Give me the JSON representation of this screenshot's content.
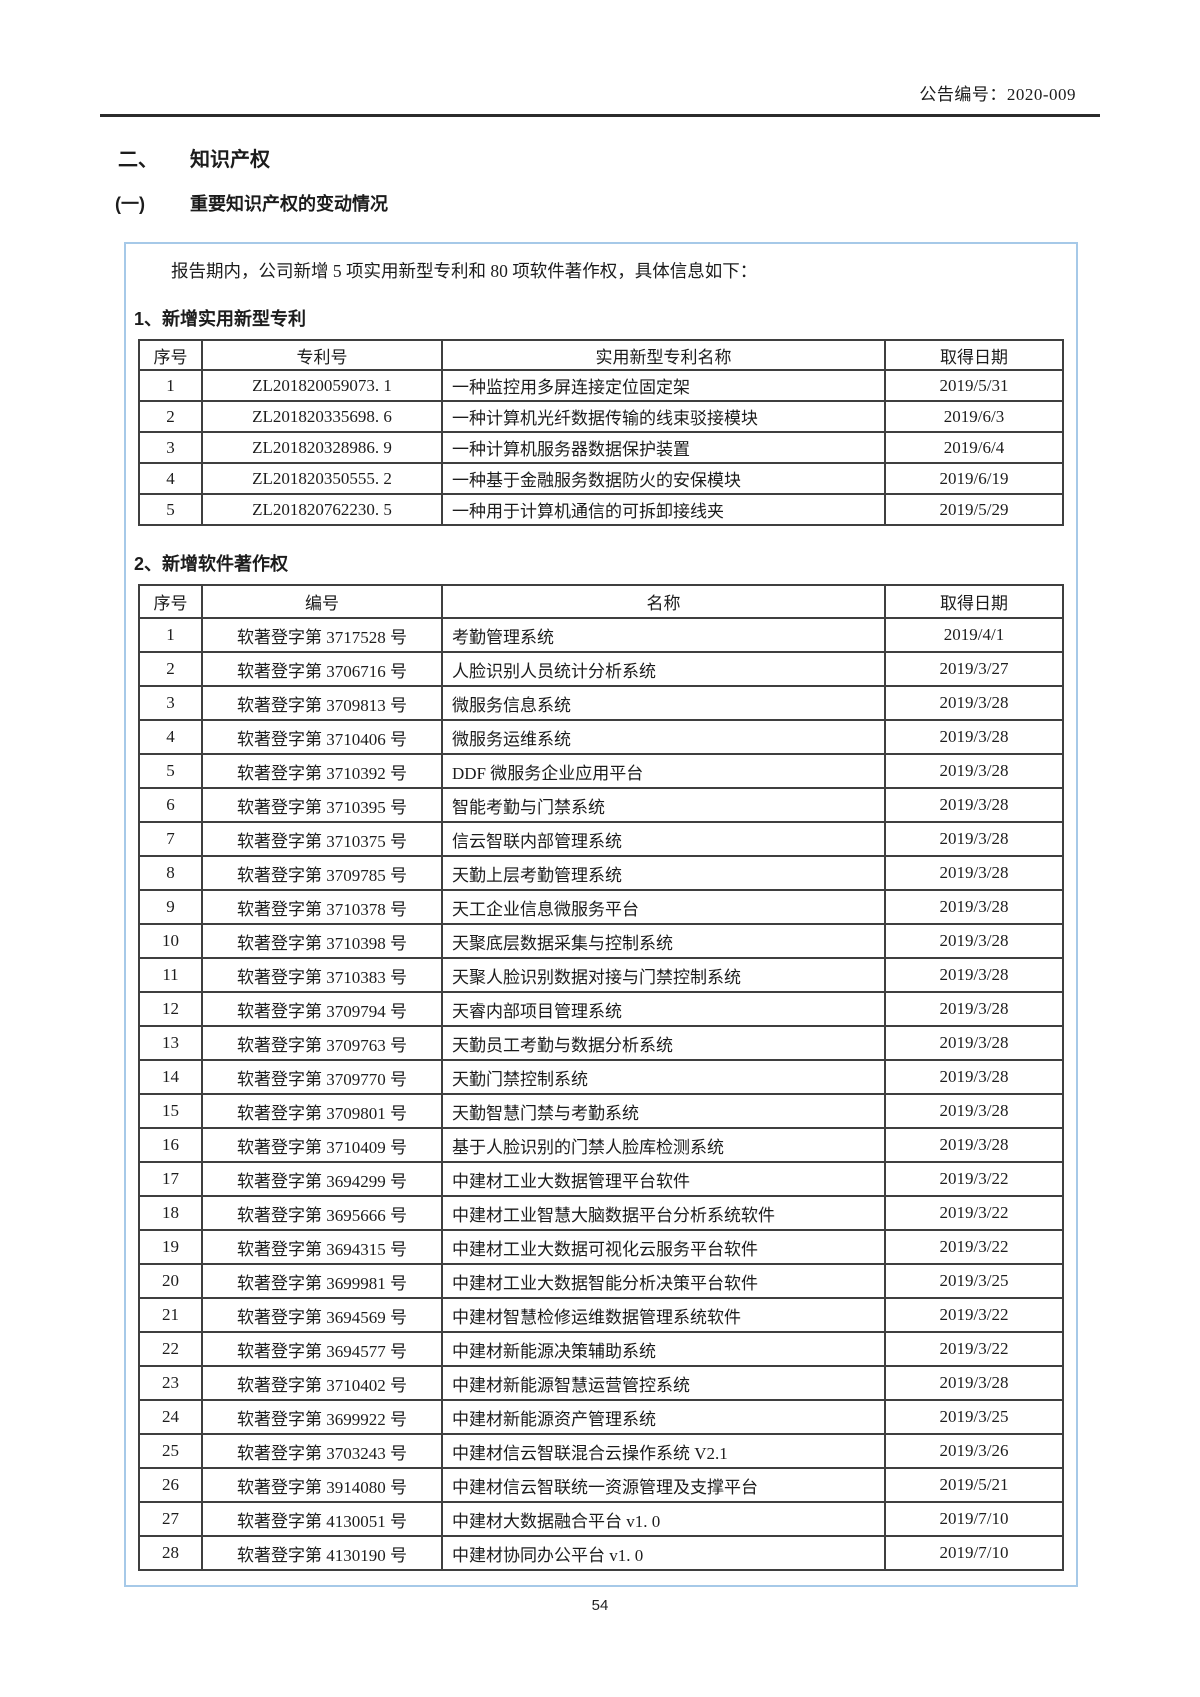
{
  "page": {
    "doc_number": "公告编号：2020-009",
    "page_number": "54"
  },
  "headings": {
    "section_number": "二、",
    "section_title": "知识产权",
    "subsection_number": "(一)",
    "subsection_title": "重要知识产权的变动情况",
    "intro": "报告期内，公司新增 5 项实用新型专利和 80 项软件著作权，具体信息如下：",
    "table1_heading": "1、新增实用新型专利",
    "table2_heading": "2、新增软件著作权"
  },
  "patent_table": {
    "headers": [
      "序号",
      "专利号",
      "实用新型专利名称",
      "取得日期"
    ],
    "rows": [
      [
        "1",
        "ZL201820059073. 1",
        "一种监控用多屏连接定位固定架",
        "2019/5/31"
      ],
      [
        "2",
        "ZL201820335698. 6",
        "一种计算机光纤数据传输的线束驳接模块",
        "2019/6/3"
      ],
      [
        "3",
        "ZL201820328986. 9",
        "一种计算机服务器数据保护装置",
        "2019/6/4"
      ],
      [
        "4",
        "ZL201820350555. 2",
        "一种基于金融服务数据防火的安保模块",
        "2019/6/19"
      ],
      [
        "5",
        "ZL201820762230. 5",
        "一种用于计算机通信的可拆卸接线夹",
        "2019/5/29"
      ]
    ]
  },
  "copyright_table": {
    "headers": [
      "序号",
      "编号",
      "名称",
      "取得日期"
    ],
    "rows": [
      [
        "1",
        "软著登字第 3717528 号",
        "考勤管理系统",
        "2019/4/1"
      ],
      [
        "2",
        "软著登字第 3706716 号",
        "人脸识别人员统计分析系统",
        "2019/3/27"
      ],
      [
        "3",
        "软著登字第 3709813 号",
        "微服务信息系统",
        "2019/3/28"
      ],
      [
        "4",
        "软著登字第 3710406 号",
        "微服务运维系统",
        "2019/3/28"
      ],
      [
        "5",
        "软著登字第 3710392 号",
        "DDF 微服务企业应用平台",
        "2019/3/28"
      ],
      [
        "6",
        "软著登字第 3710395 号",
        "智能考勤与门禁系统",
        "2019/3/28"
      ],
      [
        "7",
        "软著登字第 3710375 号",
        "信云智联内部管理系统",
        "2019/3/28"
      ],
      [
        "8",
        "软著登字第 3709785 号",
        "天勤上层考勤管理系统",
        "2019/3/28"
      ],
      [
        "9",
        "软著登字第 3710378 号",
        "天工企业信息微服务平台",
        "2019/3/28"
      ],
      [
        "10",
        "软著登字第 3710398 号",
        "天聚底层数据采集与控制系统",
        "2019/3/28"
      ],
      [
        "11",
        "软著登字第 3710383 号",
        "天聚人脸识别数据对接与门禁控制系统",
        "2019/3/28"
      ],
      [
        "12",
        "软著登字第 3709794 号",
        "天睿内部项目管理系统",
        "2019/3/28"
      ],
      [
        "13",
        "软著登字第 3709763 号",
        "天勤员工考勤与数据分析系统",
        "2019/3/28"
      ],
      [
        "14",
        "软著登字第 3709770 号",
        "天勤门禁控制系统",
        "2019/3/28"
      ],
      [
        "15",
        "软著登字第 3709801 号",
        "天勤智慧门禁与考勤系统",
        "2019/3/28"
      ],
      [
        "16",
        "软著登字第 3710409 号",
        "基于人脸识别的门禁人脸库检测系统",
        "2019/3/28"
      ],
      [
        "17",
        "软著登字第 3694299 号",
        "中建材工业大数据管理平台软件",
        "2019/3/22"
      ],
      [
        "18",
        "软著登字第 3695666 号",
        "中建材工业智慧大脑数据平台分析系统软件",
        "2019/3/22"
      ],
      [
        "19",
        "软著登字第 3694315 号",
        "中建材工业大数据可视化云服务平台软件",
        "2019/3/22"
      ],
      [
        "20",
        "软著登字第 3699981 号",
        "中建材工业大数据智能分析决策平台软件",
        "2019/3/25"
      ],
      [
        "21",
        "软著登字第 3694569 号",
        "中建材智慧检修运维数据管理系统软件",
        "2019/3/22"
      ],
      [
        "22",
        "软著登字第 3694577 号",
        "中建材新能源决策辅助系统",
        "2019/3/22"
      ],
      [
        "23",
        "软著登字第 3710402 号",
        "中建材新能源智慧运营管控系统",
        "2019/3/28"
      ],
      [
        "24",
        "软著登字第 3699922 号",
        "中建材新能源资产管理系统",
        "2019/3/25"
      ],
      [
        "25",
        "软著登字第 3703243 号",
        "中建材信云智联混合云操作系统 V2.1",
        "2019/3/26"
      ],
      [
        "26",
        "软著登字第 3914080 号",
        "中建材信云智联统一资源管理及支撑平台",
        "2019/5/21"
      ],
      [
        "27",
        "软著登字第 4130051 号",
        "中建材大数据融合平台 v1. 0",
        "2019/7/10"
      ],
      [
        "28",
        "软著登字第 4130190 号",
        "中建材协同办公平台 v1. 0",
        "2019/7/10"
      ]
    ]
  }
}
